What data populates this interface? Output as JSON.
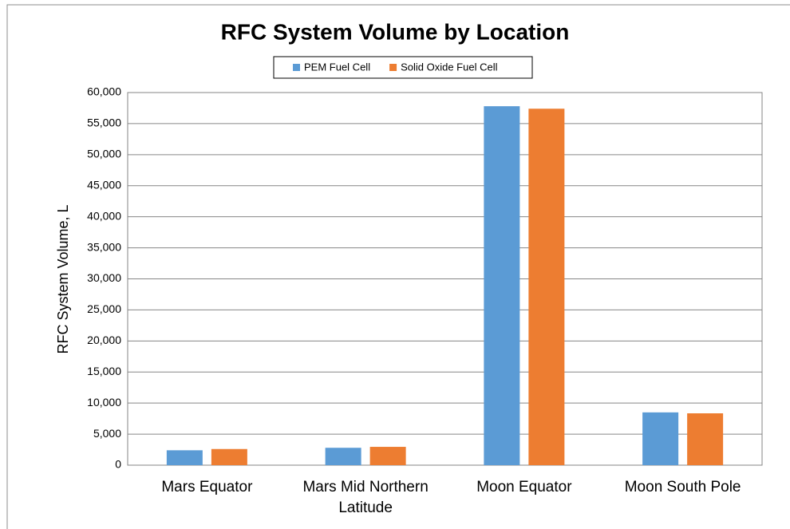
{
  "chart_data": {
    "type": "bar",
    "title": "RFC System Volume by Location",
    "ylabel": "RFC System Volume, L",
    "categories": [
      "Mars Equator",
      "Mars Mid Northern Latitude",
      "Moon Equator",
      "Moon South Pole"
    ],
    "series": [
      {
        "name": "PEM Fuel Cell",
        "color": "#5b9bd5",
        "values": [
          2400,
          2800,
          57800,
          8500
        ]
      },
      {
        "name": "Solid Oxide Fuel Cell",
        "color": "#ed7d31",
        "values": [
          2600,
          2950,
          57400,
          8350
        ]
      }
    ],
    "ylim": [
      0,
      60000
    ],
    "yticks": [
      0,
      {
        "value": 5000,
        "label": "5,000"
      },
      {
        "value": 10000,
        "label": "10,000"
      },
      {
        "value": 15000,
        "label": "15,000"
      },
      {
        "value": 20000,
        "label": "20,000"
      },
      {
        "value": 25000,
        "label": "25,000"
      },
      {
        "value": 30000,
        "label": "30,000"
      },
      {
        "value": 35000,
        "label": "35,000"
      },
      {
        "value": 40000,
        "label": "40,000"
      },
      {
        "value": 45000,
        "label": "45,000"
      },
      {
        "value": 50000,
        "label": "50,000"
      },
      {
        "value": 55000,
        "label": "55,000"
      },
      {
        "value": 60000,
        "label": "60,000"
      }
    ],
    "grid": true,
    "legend": "top"
  }
}
